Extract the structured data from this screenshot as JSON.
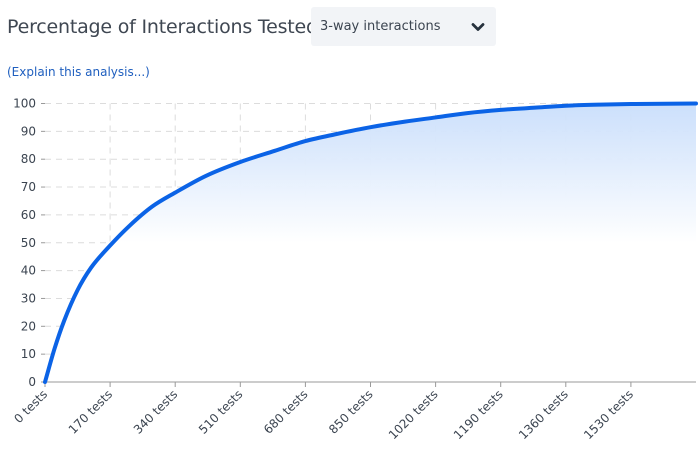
{
  "header": {
    "title": "Percentage of Interactions Tested"
  },
  "selector": {
    "selected": "3-way interactions",
    "icon": "chevron-down-icon"
  },
  "explain_link": "(Explain this analysis...)",
  "colors": {
    "line": "#0b63e6",
    "fill_top": "#c9defb",
    "grid": "#dcdcdc",
    "axis": "#9a9a9a"
  },
  "chart_data": {
    "type": "area",
    "title": "",
    "xlabel": "",
    "ylabel": "",
    "x_tick_labels": [
      "0 tests",
      "170 tests",
      "340 tests",
      "510 tests",
      "680 tests",
      "850 tests",
      "1020 tests",
      "1190 tests",
      "1360 tests",
      "1530 tests"
    ],
    "x_ticks": [
      0,
      170,
      340,
      510,
      680,
      850,
      1020,
      1190,
      1360,
      1530
    ],
    "y_ticks": [
      0,
      10,
      20,
      30,
      40,
      50,
      60,
      70,
      80,
      90,
      100
    ],
    "xlim": [
      0,
      1700
    ],
    "ylim": [
      0,
      100
    ],
    "grid": true,
    "series": [
      {
        "x": [
          0,
          25,
          50,
          85,
          120,
          170,
          220,
          280,
          340,
          420,
          510,
          600,
          680,
          760,
          850,
          940,
          1020,
          1100,
          1190,
          1280,
          1360,
          1450,
          1530,
          1620,
          1700
        ],
        "values": [
          0,
          12,
          22,
          33,
          41,
          49,
          56,
          63,
          68,
          74,
          79,
          83,
          86.5,
          89,
          91.5,
          93.5,
          95,
          96.5,
          97.7,
          98.5,
          99.2,
          99.6,
          99.8,
          99.9,
          100
        ]
      }
    ]
  }
}
